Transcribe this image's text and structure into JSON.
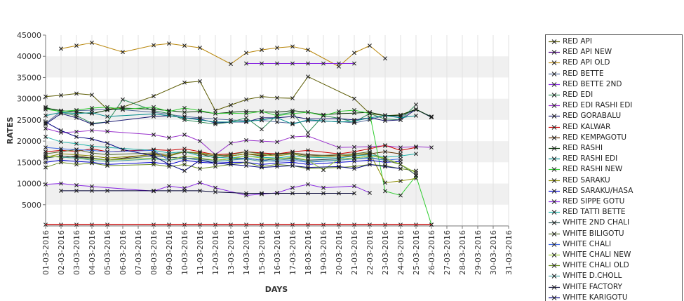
{
  "chart_data": {
    "type": "line",
    "xlabel": "DAYS",
    "ylabel": "RATES",
    "ylim": [
      0,
      45000
    ],
    "yticks": [
      5000,
      10000,
      15000,
      20000,
      25000,
      30000,
      35000,
      40000,
      45000
    ],
    "x": [
      "01-03-2016",
      "02-03-2016",
      "03-03-2016",
      "04-03-2016",
      "05-03-2016",
      "06-03-2016",
      "07-03-2016",
      "08-03-2016",
      "09-03-2016",
      "10-03-2016",
      "11-03-2016",
      "12-03-2016",
      "13-03-2016",
      "14-03-2016",
      "15-03-2016",
      "16-03-2016",
      "17-03-2016",
      "18-03-2016",
      "19-03-2016",
      "20-03-2016",
      "21-03-2016",
      "22-03-2016",
      "23-03-2016",
      "24-03-2016",
      "25-03-2016",
      "26-03-2016",
      "27-03-2016",
      "28-03-2016",
      "29-03-2016",
      "30-03-2016",
      "31-03-2016"
    ],
    "grid": "horizontal bands",
    "legend": "right",
    "series": [
      {
        "name": "RED API",
        "color": "#5a5a00",
        "values": [
          30500,
          30800,
          31200,
          30900,
          27500,
          28000,
          null,
          30600,
          null,
          33800,
          34100,
          27200,
          28500,
          29800,
          30500,
          30200,
          30100,
          35200,
          null,
          null,
          30000,
          26500,
          26000,
          26200,
          27500,
          25700,
          null,
          null,
          null,
          null,
          null
        ]
      },
      {
        "name": "RED API NEW",
        "color": "#4b0082",
        "values": [
          300,
          300,
          300,
          300,
          300,
          null,
          null,
          300,
          300,
          300,
          300,
          300,
          300,
          300,
          300,
          300,
          300,
          300,
          300,
          300,
          300,
          300,
          300,
          300,
          300,
          300,
          null,
          null,
          null,
          null,
          null
        ]
      },
      {
        "name": "RED API OLD",
        "color": "#b8860b",
        "values": [
          null,
          41800,
          42500,
          43200,
          null,
          41000,
          null,
          42600,
          43000,
          42500,
          42000,
          null,
          38200,
          40800,
          41500,
          42000,
          42300,
          41500,
          null,
          37600,
          40800,
          42500,
          39500,
          null,
          null,
          null,
          null,
          null,
          null,
          null,
          null
        ]
      },
      {
        "name": "RED BETTE",
        "color": "#556b9a",
        "values": [
          24200,
          27000,
          27200,
          27300,
          27500,
          27400,
          null,
          26800,
          26300,
          25800,
          25500,
          25200,
          25000,
          24800,
          24900,
          24500,
          24200,
          24800,
          null,
          24600,
          24300,
          25000,
          26100,
          25800,
          27400,
          25800,
          null,
          null,
          null,
          null,
          null
        ]
      },
      {
        "name": "RED BETTE 2ND",
        "color": "#8a2be2",
        "values": [
          null,
          null,
          null,
          null,
          null,
          null,
          null,
          null,
          null,
          null,
          null,
          null,
          null,
          38300,
          38300,
          38300,
          38300,
          38300,
          38300,
          38300,
          38300,
          null,
          null,
          null,
          null,
          null,
          null,
          null,
          null,
          null,
          null
        ]
      },
      {
        "name": "RED EDI",
        "color": "#2e8b57",
        "values": [
          28000,
          26800,
          26000,
          24200,
          24500,
          29800,
          null,
          27200,
          26500,
          25000,
          24500,
          24000,
          24500,
          25500,
          22800,
          26200,
          26800,
          22000,
          26000,
          25400,
          24500,
          26500,
          25200,
          25000,
          28600,
          null,
          null,
          null,
          null,
          null,
          null
        ]
      },
      {
        "name": "RED EDI RASHI EDI",
        "color": "#9932cc",
        "values": [
          23000,
          22000,
          22200,
          22500,
          22300,
          null,
          null,
          21500,
          20800,
          21500,
          20000,
          16800,
          19500,
          20200,
          20000,
          19800,
          21000,
          21200,
          null,
          18500,
          18600,
          18700,
          18900,
          18500,
          18700,
          18500,
          null,
          null,
          null,
          null,
          null
        ]
      },
      {
        "name": "RED GORABALU",
        "color": "#191970",
        "values": [
          24000,
          26500,
          25500,
          24000,
          24500,
          null,
          null,
          25800,
          26000,
          25500,
          25200,
          24300,
          24500,
          24500,
          25500,
          25500,
          25800,
          25200,
          null,
          25300,
          25000,
          25500,
          24800,
          25000,
          27500,
          25600,
          null,
          null,
          null,
          null,
          null
        ]
      },
      {
        "name": "RED KALWAR",
        "color": "#cc0000",
        "values": [
          17500,
          17800,
          17600,
          18200,
          17500,
          null,
          null,
          18000,
          17800,
          18200,
          17500,
          16800,
          17000,
          17500,
          17200,
          17000,
          17500,
          17800,
          null,
          17000,
          17500,
          18200,
          19000,
          17800,
          18500,
          null,
          null,
          null,
          null,
          null,
          null
        ]
      },
      {
        "name": "RED KEMPAGOTU",
        "color": "#5c2e00",
        "values": [
          null,
          16000,
          16500,
          16000,
          15500,
          null,
          null,
          17000,
          16500,
          17500,
          17000,
          16000,
          16500,
          17000,
          16500,
          17000,
          17200,
          16800,
          null,
          16500,
          16500,
          17000,
          17500,
          17000,
          null,
          null,
          null,
          null,
          null,
          null,
          null
        ]
      },
      {
        "name": "RED RASHI",
        "color": "#003300",
        "values": [
          27800,
          27200,
          26800,
          26500,
          27300,
          27800,
          null,
          27500,
          27200,
          26800,
          27000,
          26500,
          26800,
          27000,
          26900,
          26800,
          27200,
          26800,
          26200,
          26500,
          26600,
          26800,
          26000,
          26100,
          27500,
          25700,
          null,
          null,
          null,
          null,
          null
        ]
      },
      {
        "name": "RED RASHI EDI",
        "color": "#008b8b",
        "values": [
          26000,
          26800,
          26500,
          26700,
          25800,
          null,
          null,
          26400,
          26000,
          25500,
          25000,
          24500,
          24500,
          24600,
          25000,
          25500,
          24000,
          25000,
          24800,
          24500,
          24700,
          25500,
          26000,
          25500,
          26000,
          null,
          null,
          null,
          null,
          null,
          null
        ]
      },
      {
        "name": "RED RASHI NEW",
        "color": "#32cd32",
        "values": [
          27500,
          27000,
          27300,
          27800,
          28000,
          27500,
          null,
          28000,
          27000,
          27800,
          27200,
          26500,
          26600,
          26500,
          27000,
          26000,
          26500,
          26800,
          26000,
          27000,
          27300,
          26500,
          8200,
          7200,
          11800,
          300,
          null,
          null,
          null,
          null,
          null
        ]
      },
      {
        "name": "RED SARAKU",
        "color": "#8b8b00",
        "values": [
          16200,
          17000,
          16800,
          16500,
          16000,
          null,
          null,
          16800,
          16500,
          17500,
          17200,
          16800,
          16500,
          17000,
          16800,
          16500,
          17000,
          16200,
          null,
          16500,
          16800,
          17200,
          10200,
          10600,
          11200,
          null,
          null,
          null,
          null,
          null,
          null
        ]
      },
      {
        "name": "RED SARAKU/HASA",
        "color": "#0000cd",
        "values": [
          15000,
          15500,
          15200,
          15000,
          14500,
          null,
          null,
          15000,
          14500,
          15500,
          15000,
          14800,
          15000,
          15000,
          14500,
          14800,
          15000,
          14500,
          null,
          15000,
          15200,
          15500,
          15000,
          15200,
          null,
          null,
          null,
          null,
          null,
          null,
          null
        ]
      },
      {
        "name": "RED SIPPE GOTU",
        "color": "#8a2be2",
        "values": [
          9800,
          10000,
          9600,
          9300,
          null,
          null,
          null,
          8200,
          9400,
          8900,
          10200,
          9000,
          null,
          7200,
          7500,
          7800,
          9000,
          9800,
          9000,
          null,
          9400,
          7800,
          null,
          null,
          null,
          null,
          null,
          null,
          null,
          null,
          null
        ]
      },
      {
        "name": "RED TATTI BETTE",
        "color": "#20b2aa",
        "values": [
          21000,
          19800,
          19400,
          18800,
          18500,
          null,
          null,
          17800,
          17200,
          17500,
          16500,
          16200,
          16000,
          16500,
          16200,
          16000,
          16500,
          16200,
          null,
          16000,
          16500,
          16800,
          16200,
          16500,
          17000,
          null,
          null,
          null,
          null,
          null,
          null
        ]
      },
      {
        "name": "WHITE 2ND CHALI",
        "color": "#2f4f4f",
        "values": [
          16000,
          16500,
          16200,
          16000,
          15500,
          null,
          null,
          16500,
          16200,
          16000,
          15800,
          15500,
          15800,
          16000,
          15500,
          15800,
          16000,
          15500,
          null,
          15800,
          16000,
          16500,
          16000,
          14500,
          12000,
          null,
          null,
          null,
          null,
          null,
          null
        ]
      },
      {
        "name": "WHITE BILIGOTU",
        "color": "#556b2f",
        "values": [
          17000,
          17500,
          18000,
          17200,
          16800,
          null,
          null,
          17200,
          16800,
          17500,
          17000,
          16500,
          16800,
          17500,
          17000,
          16800,
          17200,
          16500,
          null,
          16800,
          17000,
          17500,
          15500,
          14500,
          null,
          null,
          null,
          null,
          null,
          null,
          null
        ]
      },
      {
        "name": "WHITE CHALI",
        "color": "#4169e1",
        "values": [
          18500,
          18200,
          18000,
          17800,
          17500,
          null,
          null,
          17800,
          15500,
          16000,
          15500,
          15200,
          15500,
          16000,
          15500,
          15200,
          15500,
          15000,
          null,
          15500,
          15800,
          16000,
          15500,
          15800,
          null,
          null,
          null,
          null,
          null,
          null,
          null
        ]
      },
      {
        "name": "WHITE CHALI NEW",
        "color": "#9acd32",
        "values": [
          16500,
          16200,
          16000,
          15800,
          15500,
          null,
          null,
          16000,
          15500,
          16500,
          16000,
          15500,
          15800,
          16500,
          16000,
          15800,
          16200,
          15500,
          13200,
          15800,
          16000,
          16500,
          16000,
          14500,
          12500,
          null,
          null,
          null,
          null,
          null,
          null
        ]
      },
      {
        "name": "WHITE CHALI OLD",
        "color": "#6b8e23",
        "values": [
          13800,
          15000,
          14500,
          14800,
          14200,
          null,
          null,
          14500,
          14000,
          14500,
          13500,
          14000,
          14500,
          15000,
          14000,
          14500,
          14200,
          13500,
          null,
          13800,
          14000,
          14500,
          14200,
          13500,
          13000,
          null,
          null,
          null,
          null,
          null,
          null
        ]
      },
      {
        "name": "WHITE D.CHOLL",
        "color": "#48a0a0",
        "values": [
          null,
          16200,
          16000,
          15500,
          15200,
          null,
          null,
          15800,
          15500,
          16000,
          15500,
          15200,
          15500,
          15800,
          15200,
          15500,
          15800,
          15200,
          null,
          15500,
          15800,
          16200,
          15500,
          null,
          null,
          null,
          null,
          null,
          null,
          null,
          null
        ]
      },
      {
        "name": "WHITE FACTORY",
        "color": "#000033",
        "values": [
          null,
          8300,
          8300,
          8300,
          8300,
          null,
          null,
          8300,
          8300,
          8300,
          8300,
          8000,
          null,
          7700,
          7700,
          7700,
          7700,
          7700,
          7700,
          7700,
          7700,
          null,
          null,
          null,
          null,
          null,
          null,
          null,
          null,
          null,
          null
        ]
      },
      {
        "name": "WHITE KARIGOTU",
        "color": "#000080",
        "values": [
          24500,
          22500,
          21000,
          20500,
          19500,
          18000,
          null,
          16500,
          14500,
          13000,
          15500,
          14800,
          14500,
          14200,
          13800,
          14000,
          14200,
          13800,
          null,
          14000,
          13500,
          14500,
          14000,
          13500,
          null,
          null,
          null,
          null,
          null,
          null,
          null
        ]
      }
    ]
  }
}
